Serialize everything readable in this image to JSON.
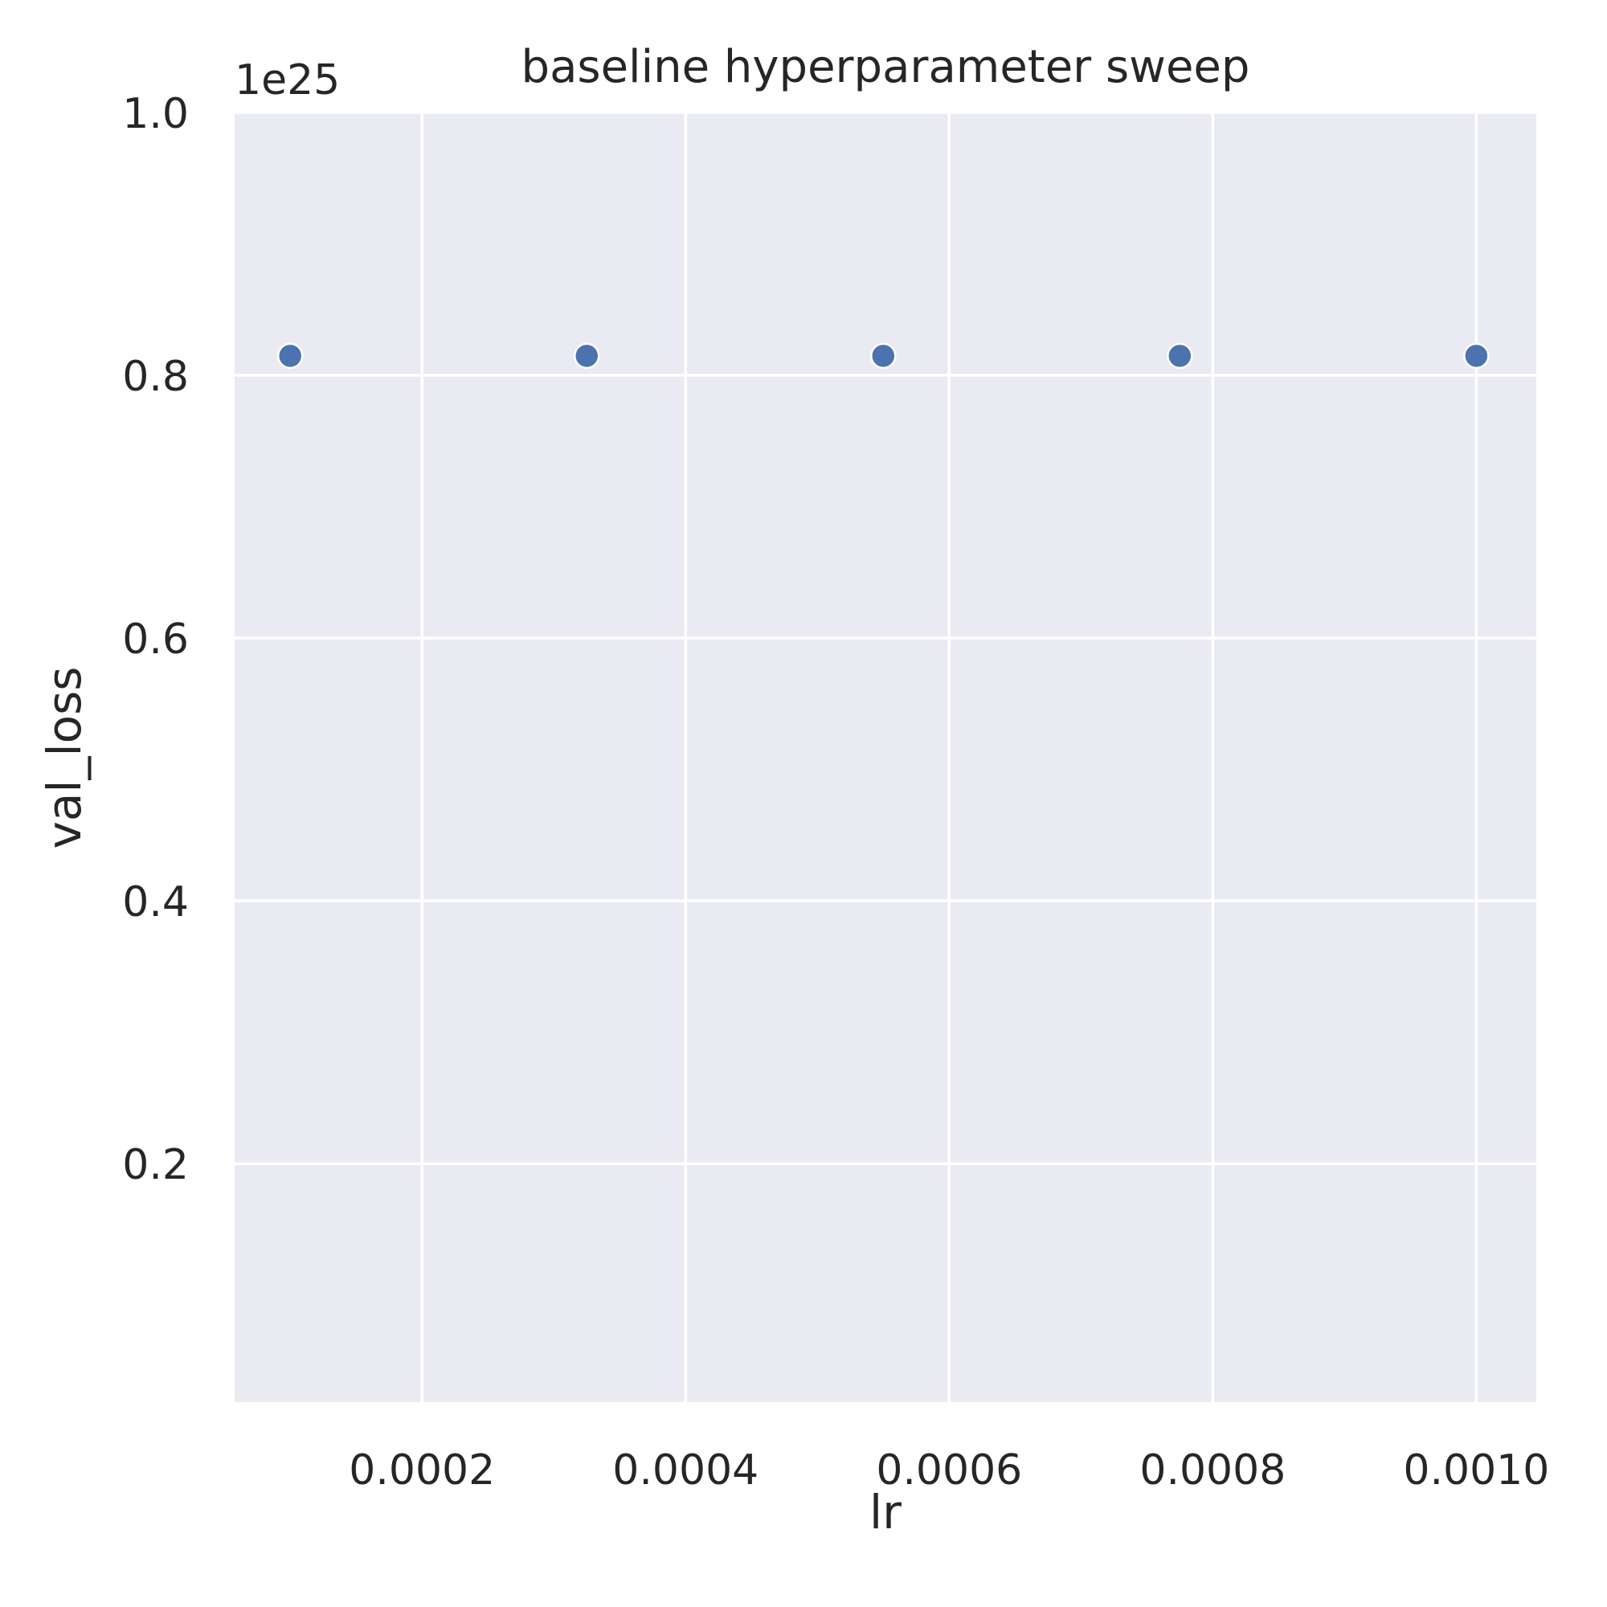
{
  "chart_data": {
    "type": "scatter",
    "title": "baseline hyperparameter sweep",
    "xlabel": "lr",
    "ylabel": "val_loss",
    "y_offset_label": "1e25",
    "x_ticks": [
      {
        "value": 0.0002,
        "label": "0.0002"
      },
      {
        "value": 0.0004,
        "label": "0.0004"
      },
      {
        "value": 0.0006,
        "label": "0.0006"
      },
      {
        "value": 0.0008,
        "label": "0.0008"
      },
      {
        "value": 0.001,
        "label": "0.0010"
      }
    ],
    "y_ticks": [
      {
        "value": 0.2,
        "label": "0.2"
      },
      {
        "value": 0.4,
        "label": "0.4"
      },
      {
        "value": 0.6,
        "label": "0.6"
      },
      {
        "value": 0.8,
        "label": "0.8"
      },
      {
        "value": 1.0,
        "label": "1.0"
      }
    ],
    "xlim": [
      5.78e-05,
      0.0010455
    ],
    "ylim": [
      0.0185,
      1.0
    ],
    "y_scale_factor": 1e+25,
    "grid": true,
    "legend": "none",
    "colors": {
      "background": "#eaeaf2",
      "grid": "#ffffff",
      "marker": "#4c72b0",
      "marker_edge": "#ffffff",
      "text": "#262626"
    },
    "series": [
      {
        "x": [
          0.0001,
          0.000325,
          0.00055,
          0.000775,
          0.001
        ],
        "y": [
          0.8148,
          0.8148,
          0.8148,
          0.8148,
          0.8148
        ]
      }
    ]
  }
}
